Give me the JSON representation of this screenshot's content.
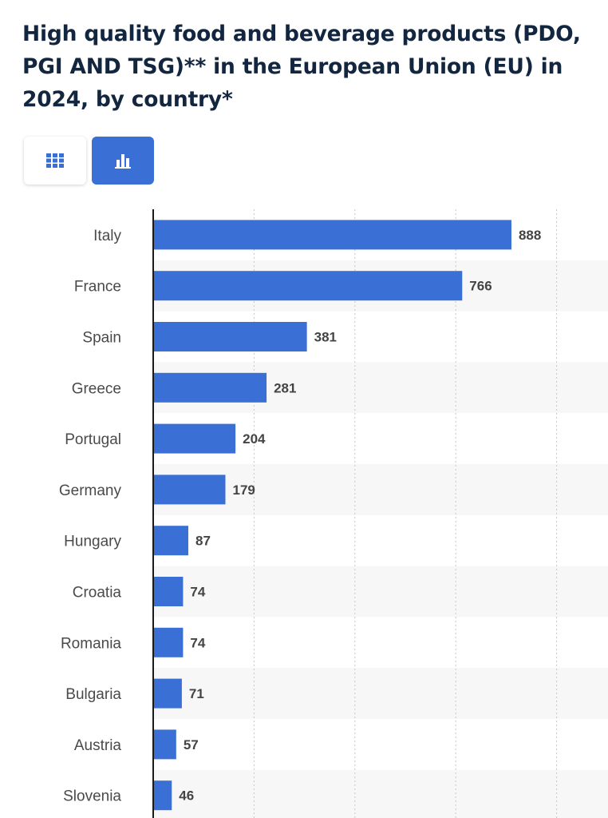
{
  "title": "High quality food and beverage products (PDO, PGI AND TSG)** in the European Union (EU) in 2024, by country*",
  "toolbar": {
    "table_view_icon": "grid-icon",
    "chart_view_icon": "bar-chart-icon",
    "active": "chart"
  },
  "colors": {
    "bar": "#3a70d6",
    "title": "#13263f",
    "band": "#f7f7f7",
    "active_toggle": "#3a70d6"
  },
  "chart_data": {
    "type": "bar",
    "orientation": "horizontal",
    "categories": [
      "Italy",
      "France",
      "Spain",
      "Greece",
      "Portugal",
      "Germany",
      "Hungary",
      "Croatia",
      "Romania",
      "Bulgaria",
      "Austria",
      "Slovenia"
    ],
    "values": [
      888,
      766,
      381,
      281,
      204,
      179,
      87,
      74,
      74,
      71,
      57,
      46
    ],
    "xlim": [
      0,
      1000
    ],
    "grid": "vertical dotted at 250, 500, 750, 1000",
    "data_labels": true,
    "legend": "none"
  }
}
